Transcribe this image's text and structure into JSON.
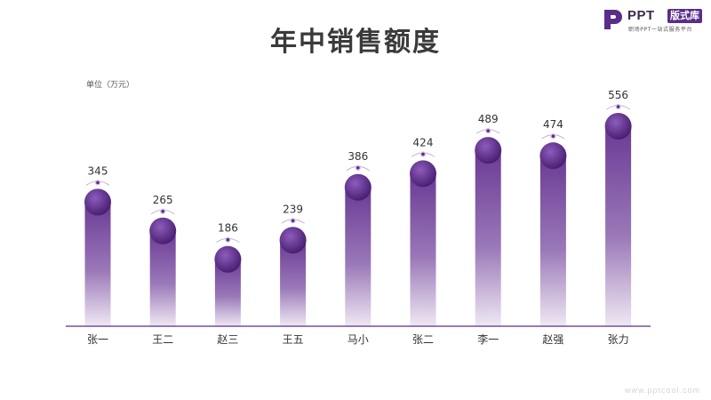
{
  "page": {
    "title": "年中销售额度",
    "unit_label": "单位（万元）",
    "watermark": "www.pptcool.com"
  },
  "logo": {
    "brand": "PPT",
    "badge": "版式库",
    "tagline": "职场PPT一站式服务平台"
  },
  "colors": {
    "accent": "#5b2d8a",
    "bar_top": "#6a3a95",
    "bar_bottom": "#efe8f3",
    "ball_light": "#8d5cbc",
    "ball_dark": "#4a1f72",
    "baseline": "#5b2d8a"
  },
  "chart_data": {
    "type": "bar",
    "categories": [
      "张一",
      "王二",
      "赵三",
      "王五",
      "马小",
      "张二",
      "李一",
      "赵强",
      "张力"
    ],
    "values": [
      345,
      265,
      186,
      239,
      386,
      424,
      489,
      474,
      556
    ],
    "data_labels": [
      "345",
      "265",
      "186",
      "239",
      "386",
      "424",
      "489",
      "474",
      "556"
    ],
    "title": "年中销售额度",
    "ylabel": "单位（万元）",
    "ylim": [
      0,
      600
    ],
    "grid": false,
    "legend": "none"
  }
}
